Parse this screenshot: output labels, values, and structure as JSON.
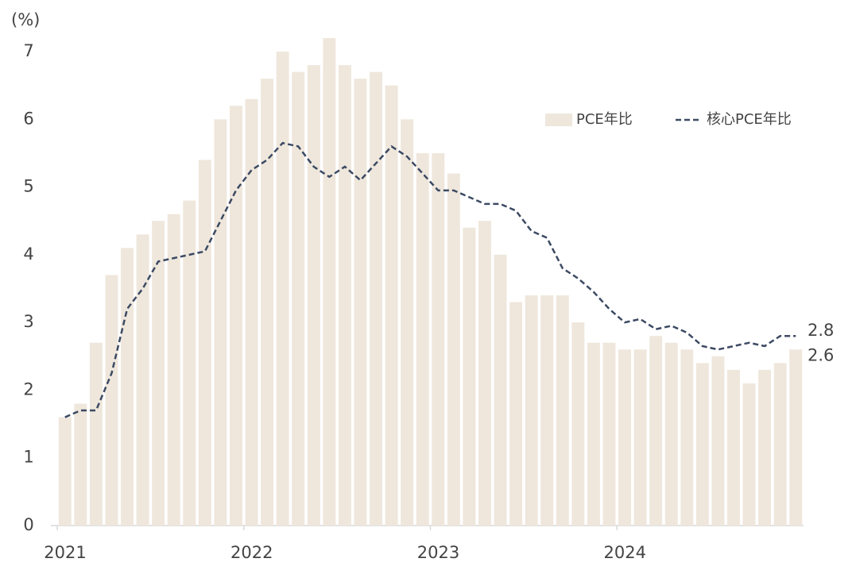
{
  "chart_data": {
    "type": "bar",
    "y_label": "(%)",
    "categories": [
      "2021",
      null,
      null,
      null,
      null,
      null,
      null,
      null,
      null,
      null,
      null,
      null,
      "2022",
      null,
      null,
      null,
      null,
      null,
      null,
      null,
      null,
      null,
      null,
      null,
      "2023",
      null,
      null,
      null,
      null,
      null,
      null,
      null,
      null,
      null,
      null,
      null,
      "2024",
      null,
      null,
      null,
      null,
      null,
      null,
      null,
      null,
      null,
      null,
      null
    ],
    "series": [
      {
        "name": "PCE年比",
        "type": "bar",
        "color": "#efe7dc",
        "label_color": "#9a7a4e",
        "end_label_color": "#b39362",
        "values": [
          1.6,
          1.8,
          2.7,
          3.7,
          4.1,
          4.3,
          4.5,
          4.6,
          4.8,
          5.4,
          6.0,
          6.2,
          6.3,
          6.6,
          7.0,
          6.7,
          6.8,
          7.2,
          6.8,
          6.6,
          6.7,
          6.5,
          6.0,
          5.5,
          5.5,
          5.2,
          4.4,
          4.5,
          4.0,
          3.3,
          3.4,
          3.4,
          3.4,
          3.0,
          2.7,
          2.7,
          2.6,
          2.6,
          2.8,
          2.7,
          2.6,
          2.4,
          2.5,
          2.3,
          2.1,
          2.3,
          2.4,
          2.6
        ]
      },
      {
        "name": "核心PCE年比",
        "type": "line",
        "color": "#3c4a63",
        "label_color": "#2f3e5a",
        "end_label_color": "#2f3e5a",
        "values": [
          1.6,
          1.7,
          1.7,
          2.25,
          3.2,
          3.5,
          3.9,
          3.95,
          4.0,
          4.05,
          4.5,
          4.95,
          5.25,
          5.4,
          5.65,
          5.6,
          5.3,
          5.15,
          5.3,
          5.1,
          5.35,
          5.6,
          5.45,
          5.2,
          4.95,
          4.95,
          4.85,
          4.75,
          4.75,
          4.65,
          4.35,
          4.25,
          3.8,
          3.65,
          3.45,
          3.2,
          3.0,
          3.05,
          2.9,
          2.95,
          2.85,
          2.65,
          2.6,
          2.65,
          2.7,
          2.65,
          2.8,
          2.8
        ]
      }
    ],
    "ylim": [
      0,
      7
    ],
    "yticks": [
      0,
      1,
      2,
      3,
      4,
      5,
      6,
      7
    ],
    "legend": "upper right",
    "end_labels": true
  }
}
